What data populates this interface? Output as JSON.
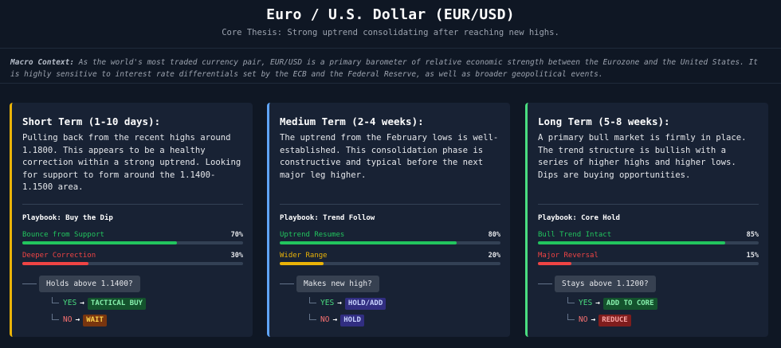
{
  "header": {
    "title": "Euro / U.S. Dollar (EUR/USD)",
    "subtitle": "Core Thesis: Strong uptrend consolidating after reaching new highs."
  },
  "macro": {
    "label": "Macro Context:",
    "text": " As the world's most traded currency pair, EUR/USD is a primary barometer of relative economic strength between the Eurozone and the United States. It is highly sensitive to interest rate differentials set by the ECB and the Federal Reserve, as well as broader geopolitical events."
  },
  "cards": [
    {
      "title": "Short Term (1-10 days):",
      "accent": "#eab308",
      "description": "Pulling back from the recent highs around 1.1800. This appears to be a healthy correction within a strong uptrend. Looking for support to form around the 1.1400-1.1500 area.",
      "playbook": "Playbook: Buy the Dip",
      "scenarios": [
        {
          "label": "Bounce from Support",
          "pct_text": "70%",
          "value": 70,
          "color": "#22c55e"
        },
        {
          "label": "Deeper Correction",
          "pct_text": "30%",
          "value": 30,
          "color": "#ef4444"
        }
      ],
      "question": "Holds above 1.1400?",
      "yes_label": "YES",
      "no_label": "NO",
      "yes_action": "TACTICAL BUY",
      "no_action": "WAIT",
      "yes_colors": {
        "bg": "#14532d",
        "fg": "#86efac"
      },
      "no_colors": {
        "bg": "#78350f",
        "fg": "#fcd34d"
      }
    },
    {
      "title": "Medium Term (2-4 weeks):",
      "accent": "#60a5fa",
      "description": "The uptrend from the February lows is well-established. This consolidation phase is constructive and typical before the next major leg higher.",
      "playbook": "Playbook: Trend Follow",
      "scenarios": [
        {
          "label": "Uptrend Resumes",
          "pct_text": "80%",
          "value": 80,
          "color": "#22c55e"
        },
        {
          "label": "Wider Range",
          "pct_text": "20%",
          "value": 20,
          "color": "#eab308"
        }
      ],
      "question": "Makes new high?",
      "yes_label": "YES",
      "no_label": "NO",
      "yes_action": "HOLD/ADD",
      "no_action": "HOLD",
      "yes_colors": {
        "bg": "#312e81",
        "fg": "#c7d2fe"
      },
      "no_colors": {
        "bg": "#312e81",
        "fg": "#c7d2fe"
      }
    },
    {
      "title": "Long Term (5-8 weeks):",
      "accent": "#4ade80",
      "description": "A primary bull market is firmly in place. The trend structure is bullish with a series of higher highs and higher lows. Dips are buying opportunities.",
      "playbook": "Playbook: Core Hold",
      "scenarios": [
        {
          "label": "Bull Trend Intact",
          "pct_text": "85%",
          "value": 85,
          "color": "#22c55e"
        },
        {
          "label": "Major Reversal",
          "pct_text": "15%",
          "value": 15,
          "color": "#ef4444"
        }
      ],
      "question": "Stays above 1.1200?",
      "yes_label": "YES",
      "no_label": "NO",
      "yes_action": "ADD TO CORE",
      "no_action": "REDUCE",
      "yes_colors": {
        "bg": "#14532d",
        "fg": "#86efac"
      },
      "no_colors": {
        "bg": "#7f1d1d",
        "fg": "#fca5a5"
      }
    }
  ]
}
